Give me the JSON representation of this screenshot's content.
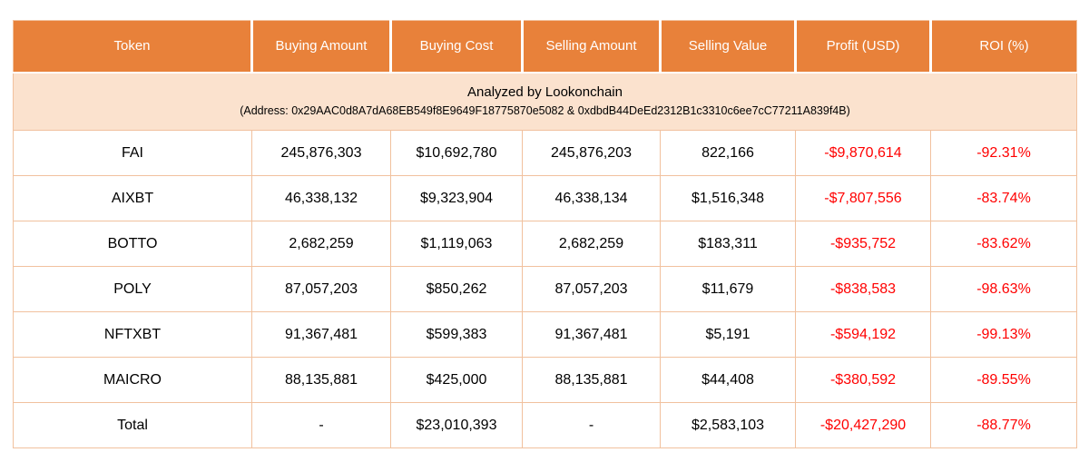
{
  "colors": {
    "header_bg": "#E8813A",
    "header_text": "#FFFFFF",
    "subheader_bg": "#FBE2CE",
    "border": "#F1C19E",
    "negative": "#FF0000",
    "text": "#000000"
  },
  "chart_data": {
    "type": "table",
    "title": "Analyzed by Lookonchain",
    "subtitle": "(Address: 0x29AAC0d8A7dA68EB549f8E9649F18775870e5082 & 0xdbdB44DeEd2312B1c3310c6ee7cC77211A839f4B)",
    "columns": [
      "Token",
      "Buying Amount",
      "Buying Cost",
      "Selling Amount",
      "Selling Value",
      "Profit (USD)",
      "ROI (%)"
    ],
    "rows": [
      {
        "token": "FAI",
        "buying_amount": "245,876,303",
        "buying_cost": "$10,692,780",
        "selling_amount": "245,876,203",
        "selling_value": "822,166",
        "profit_usd": "-$9,870,614",
        "roi": "-92.31%"
      },
      {
        "token": "AIXBT",
        "buying_amount": "46,338,132",
        "buying_cost": "$9,323,904",
        "selling_amount": "46,338,134",
        "selling_value": "$1,516,348",
        "profit_usd": "-$7,807,556",
        "roi": "-83.74%"
      },
      {
        "token": "BOTTO",
        "buying_amount": "2,682,259",
        "buying_cost": "$1,119,063",
        "selling_amount": "2,682,259",
        "selling_value": "$183,311",
        "profit_usd": "-$935,752",
        "roi": "-83.62%"
      },
      {
        "token": "POLY",
        "buying_amount": "87,057,203",
        "buying_cost": "$850,262",
        "selling_amount": "87,057,203",
        "selling_value": "$11,679",
        "profit_usd": "-$838,583",
        "roi": "-98.63%"
      },
      {
        "token": "NFTXBT",
        "buying_amount": "91,367,481",
        "buying_cost": "$599,383",
        "selling_amount": "91,367,481",
        "selling_value": "$5,191",
        "profit_usd": "-$594,192",
        "roi": "-99.13%"
      },
      {
        "token": "MAICRO",
        "buying_amount": "88,135,881",
        "buying_cost": "$425,000",
        "selling_amount": "88,135,881",
        "selling_value": "$44,408",
        "profit_usd": "-$380,592",
        "roi": "-89.55%"
      }
    ],
    "total": {
      "token": "Total",
      "buying_amount": "-",
      "buying_cost": "$23,010,393",
      "selling_amount": "-",
      "selling_value": "$2,583,103",
      "profit_usd": "-$20,427,290",
      "roi": "-88.77%"
    }
  }
}
